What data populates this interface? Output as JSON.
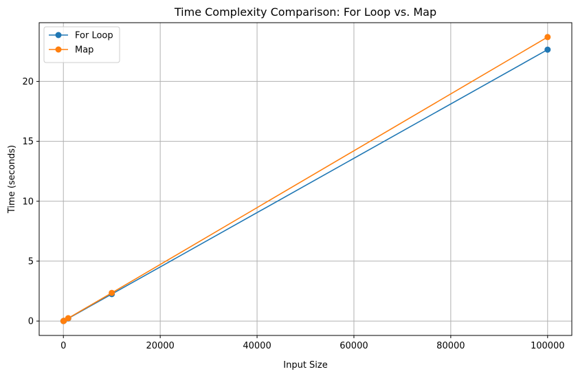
{
  "chart_data": {
    "type": "line",
    "title": "Time Complexity Comparison: For Loop vs. Map",
    "xlabel": "Input Size",
    "ylabel": "Time (seconds)",
    "xlim": [
      -5000,
      105000
    ],
    "ylim": [
      -1.2,
      24.9
    ],
    "xticks": [
      0,
      20000,
      40000,
      60000,
      80000,
      100000
    ],
    "yticks": [
      0,
      5,
      10,
      15,
      20
    ],
    "grid": true,
    "legend_position": "top-left",
    "series": [
      {
        "name": "For Loop",
        "color": "#1f77b4",
        "x": [
          10,
          100,
          1000,
          10000,
          100000
        ],
        "y": [
          0.002,
          0.02,
          0.22,
          2.25,
          22.65
        ]
      },
      {
        "name": "Map",
        "color": "#ff7f0e",
        "x": [
          10,
          100,
          1000,
          10000,
          100000
        ],
        "y": [
          0.002,
          0.024,
          0.24,
          2.35,
          23.7
        ]
      }
    ]
  }
}
